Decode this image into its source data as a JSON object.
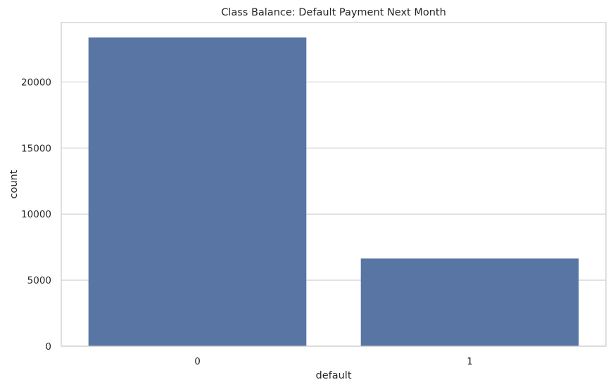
{
  "chart_data": {
    "type": "bar",
    "title": "Class Balance: Default Payment Next Month",
    "xlabel": "default",
    "ylabel": "count",
    "categories": [
      "0",
      "1"
    ],
    "values": [
      23364,
      6636
    ],
    "ylim": [
      0,
      24500
    ],
    "yticks": [
      0,
      5000,
      10000,
      15000,
      20000
    ],
    "ytick_labels": [
      "0",
      "5000",
      "10000",
      "15000",
      "20000"
    ],
    "grid": true,
    "legend": "none",
    "colors": {
      "bar": "#5875a4",
      "grid": "#d3d3d3",
      "spine": "#cccccc",
      "text": "#262626"
    }
  }
}
